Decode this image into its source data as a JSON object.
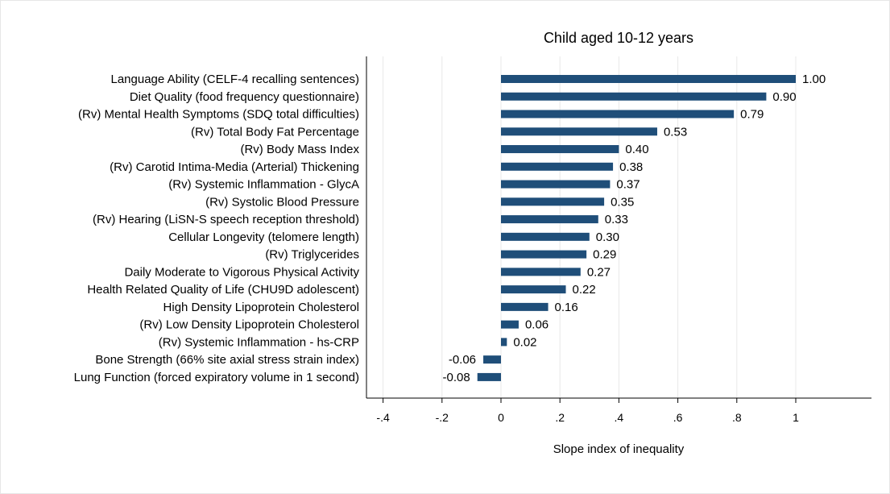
{
  "chart_data": {
    "type": "bar",
    "orientation": "horizontal",
    "title": "Child aged 10-12 years",
    "xlabel": "Slope index of inequality",
    "ylabel": "",
    "xlim": [
      -0.45,
      1.3
    ],
    "x_ticks": [
      -0.4,
      -0.2,
      0,
      0.2,
      0.4,
      0.6,
      0.8,
      1
    ],
    "x_tick_labels": [
      "-.4",
      "-.2",
      "0",
      ".2",
      ".4",
      ".6",
      ".8",
      "1"
    ],
    "grid": true,
    "bar_color": "#1f4e79",
    "grid_color": "#e8e8e8",
    "categories": [
      "Language Ability (CELF-4 recalling sentences)",
      "Diet Quality (food frequency questionnaire)",
      "(Rv) Mental Health Symptoms (SDQ total difficulties)",
      "(Rv) Total Body Fat Percentage",
      "(Rv) Body Mass Index",
      "(Rv) Carotid Intima-Media (Arterial) Thickening",
      "(Rv) Systemic Inflammation - GlycA",
      "(Rv) Systolic Blood Pressure",
      "(Rv) Hearing (LiSN-S speech reception threshold)",
      "Cellular Longevity (telomere length)",
      "(Rv) Triglycerides",
      "Daily Moderate to Vigorous Physical Activity",
      "Health Related Quality of Life (CHU9D adolescent)",
      "High Density Lipoprotein Cholesterol",
      "(Rv) Low Density Lipoprotein Cholesterol",
      "(Rv) Systemic Inflammation - hs-CRP",
      "Bone Strength (66% site axial stress strain index)",
      "Lung Function (forced expiratory volume in 1 second)"
    ],
    "values": [
      1.0,
      0.9,
      0.79,
      0.53,
      0.4,
      0.38,
      0.37,
      0.35,
      0.33,
      0.3,
      0.29,
      0.27,
      0.22,
      0.16,
      0.06,
      0.02,
      -0.06,
      -0.08
    ],
    "value_labels": [
      "1.00",
      "0.90",
      "0.79",
      "0.53",
      "0.40",
      "0.38",
      "0.37",
      "0.35",
      "0.33",
      "0.30",
      "0.29",
      "0.27",
      "0.22",
      "0.16",
      "0.06",
      "0.02",
      "-0.06",
      "-0.08"
    ]
  }
}
